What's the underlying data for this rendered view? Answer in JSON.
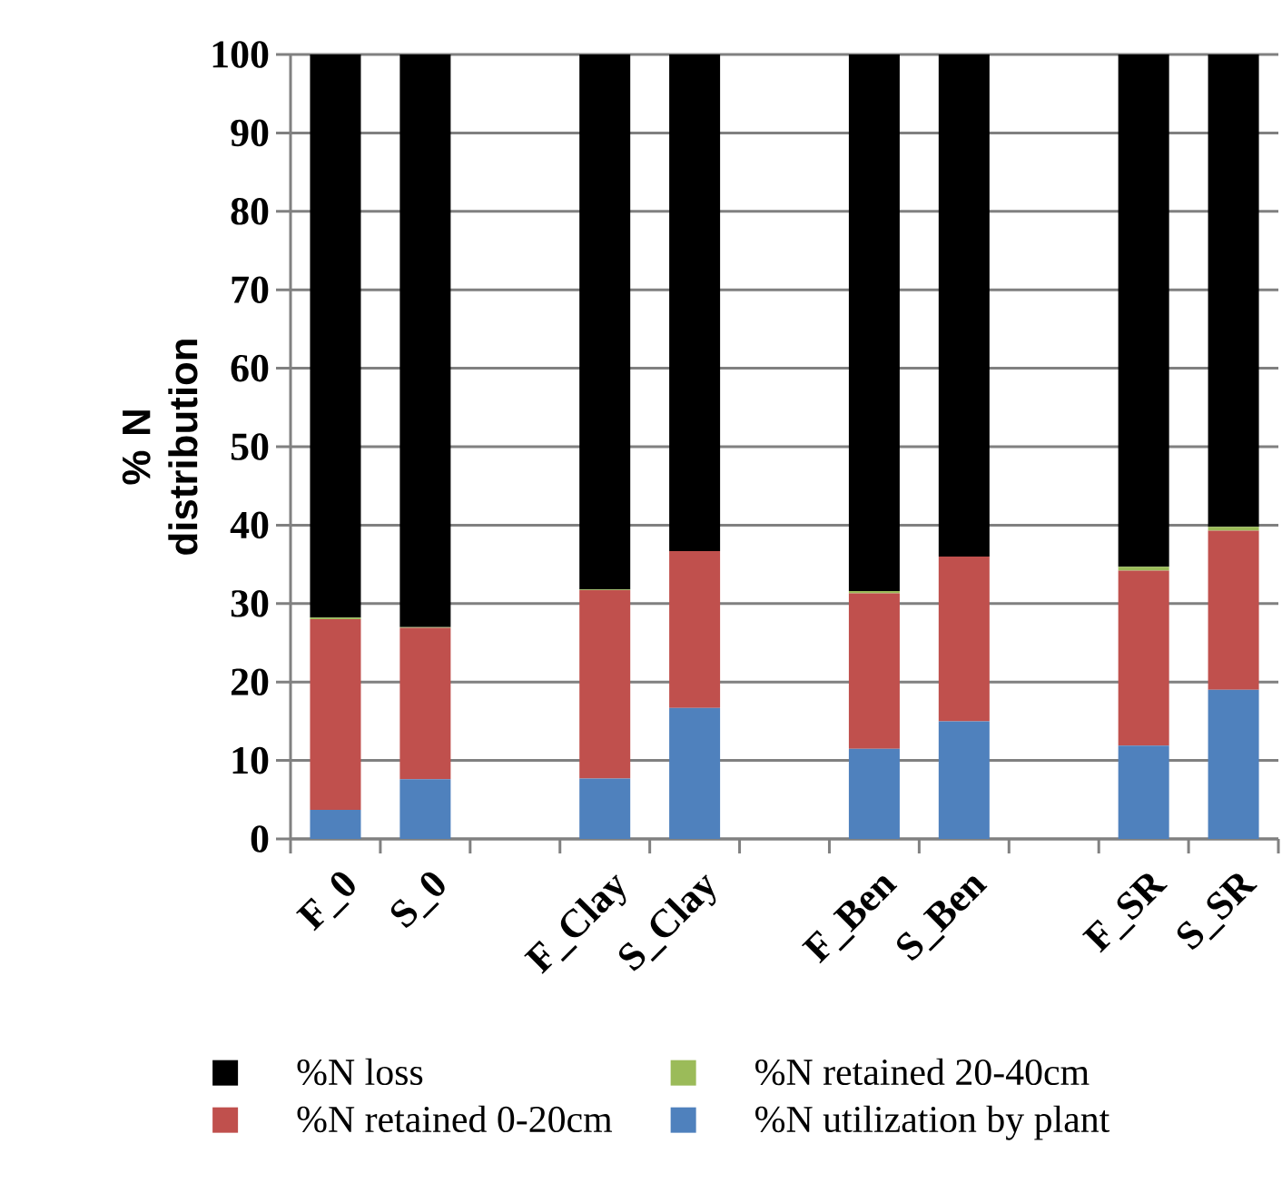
{
  "chart_data": {
    "type": "bar",
    "stacked": true,
    "ylabel": "% N distribution",
    "categories": [
      "F_0",
      "S_0",
      null,
      "F_Clay",
      "S_Clay",
      null,
      "F_Ben",
      "S_Ben",
      null,
      "F_SR",
      "S_SR"
    ],
    "series": [
      {
        "name": "%N utilization by plant",
        "color": "#4f81bd",
        "values": [
          3.7,
          7.6,
          null,
          7.7,
          16.7,
          null,
          11.5,
          15.0,
          null,
          11.9,
          19.0
        ]
      },
      {
        "name": "%N retained 0-20cm",
        "color": "#c0504d",
        "values": [
          24.3,
          19.3,
          null,
          24.0,
          20.0,
          null,
          19.8,
          21.0,
          null,
          22.3,
          20.3
        ]
      },
      {
        "name": "%N retained 20-40cm",
        "color": "#9bbb59",
        "values": [
          0.2,
          0.1,
          null,
          0.1,
          0.0,
          null,
          0.3,
          0.0,
          null,
          0.5,
          0.5
        ]
      },
      {
        "name": "%N loss",
        "color": "#000000",
        "values": [
          71.8,
          73.0,
          null,
          68.2,
          63.3,
          null,
          68.4,
          64.0,
          null,
          65.3,
          60.2
        ]
      }
    ],
    "ylim": [
      0,
      100
    ],
    "yticks": [
      0,
      10,
      20,
      30,
      40,
      50,
      60,
      70,
      80,
      90,
      100
    ],
    "grid": "y",
    "legend": "bottom"
  }
}
